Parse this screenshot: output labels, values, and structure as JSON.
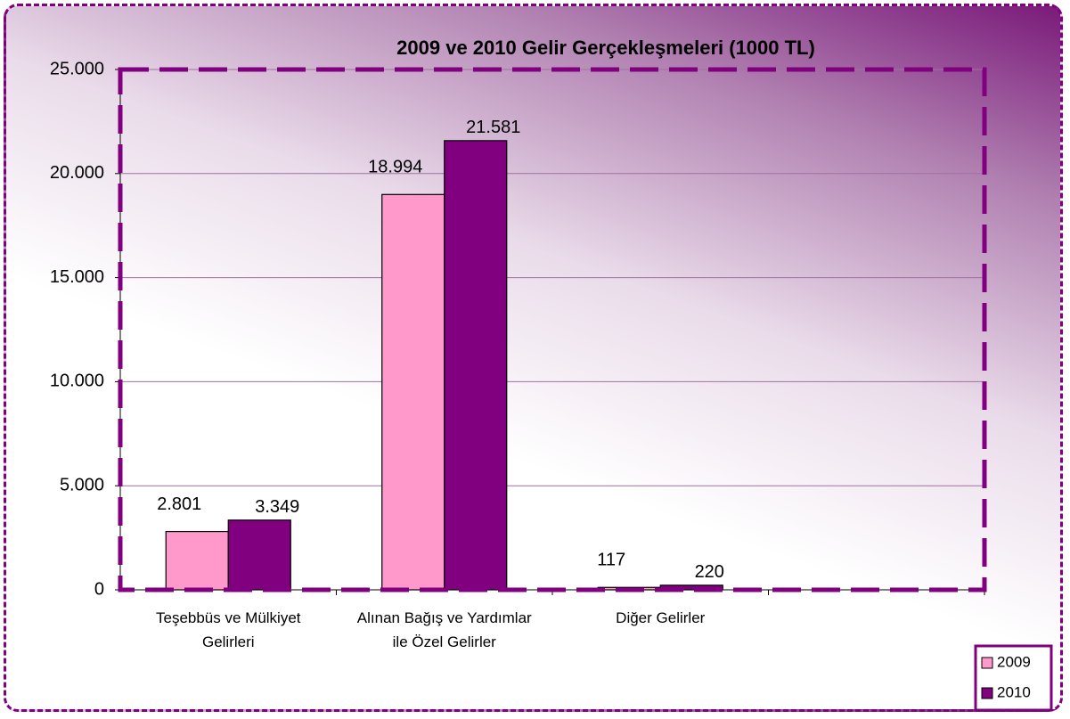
{
  "chart_data": {
    "type": "bar",
    "title": "2009 ve 2010 Gelir Gerçekleşmeleri (1000 TL)",
    "categories": [
      "Teşebbüs ve Mülkiyet Gelirleri",
      "Alınan Bağış ve Yardımlar ile Özel Gelirler",
      "Diğer Gelirler",
      null
    ],
    "series": [
      {
        "name": "2009",
        "color": "#ff99cc",
        "values": [
          2801,
          18994,
          117,
          null
        ],
        "value_labels": [
          "2.801",
          "18.994",
          "117",
          null
        ]
      },
      {
        "name": "2010",
        "color": "#800080",
        "values": [
          3349,
          21581,
          220,
          null
        ],
        "value_labels": [
          "3.349",
          "21.581",
          "220",
          null
        ]
      }
    ],
    "ylim": [
      0,
      25000
    ],
    "yticks": [
      {
        "value": 0,
        "label": "0"
      },
      {
        "value": 5000,
        "label": "5.000"
      },
      {
        "value": 10000,
        "label": "10.000"
      },
      {
        "value": 15000,
        "label": "15.000"
      },
      {
        "value": 20000,
        "label": "20.000"
      },
      {
        "value": 25000,
        "label": "25.000"
      }
    ],
    "grid": true,
    "legend": "bottom-right"
  }
}
